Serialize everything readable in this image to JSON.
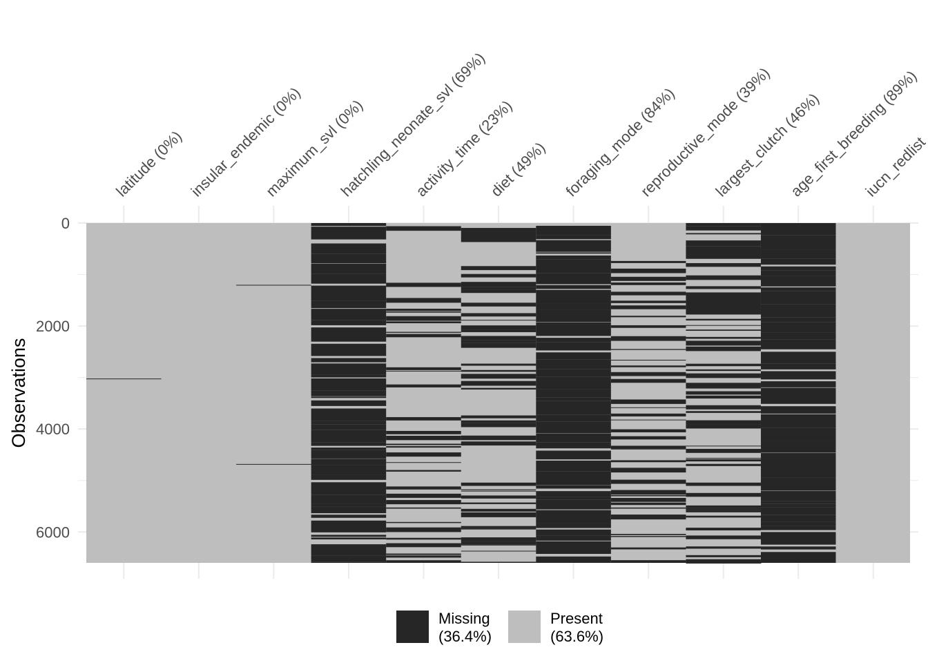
{
  "chart_data": {
    "type": "heatmap",
    "title": "",
    "xlabel": "",
    "ylabel": "Observations",
    "ylim": [
      0,
      6600
    ],
    "y_reversed": true,
    "y_ticks": [
      "0",
      "2000",
      "4000",
      "6000"
    ],
    "y_tick_values": [
      0,
      2000,
      4000,
      6000
    ],
    "n_observations": 6600,
    "grid": true,
    "legend_position": "bottom",
    "colors": {
      "missing": "#262626",
      "present": "#bebebe",
      "grid": "#ebebeb"
    },
    "columns": [
      {
        "name": "latitude",
        "pct_label": "latitude (0%)",
        "missing_pct": 0,
        "missing_rows": [
          3020
        ]
      },
      {
        "name": "insular_endemic",
        "pct_label": "insular_endemic (0%)",
        "missing_pct": 0,
        "missing_rows": []
      },
      {
        "name": "maximum_svl",
        "pct_label": "maximum_svl (0%)",
        "missing_pct": 0,
        "missing_rows": [
          1200,
          4680
        ]
      },
      {
        "name": "hatchling_neonate_svl",
        "pct_label": "hatchling_neonate_svl (69%)",
        "missing_pct": 69
      },
      {
        "name": "activity_time",
        "pct_label": "activity_time (23%)",
        "missing_pct": 23
      },
      {
        "name": "diet",
        "pct_label": "diet (49%)",
        "missing_pct": 49
      },
      {
        "name": "foraging_mode",
        "pct_label": "foraging_mode (84%)",
        "missing_pct": 84
      },
      {
        "name": "reproductive_mode",
        "pct_label": "reproductive_mode (39%)",
        "missing_pct": 39
      },
      {
        "name": "largest_clutch",
        "pct_label": "largest_clutch (46%)",
        "missing_pct": 46
      },
      {
        "name": "age_first_breeding",
        "pct_label": "age_first_breeding (89%)",
        "missing_pct": 89
      },
      {
        "name": "iucn_redlist",
        "pct_label": "iucn_redlist",
        "missing_pct": 0,
        "missing_rows": []
      }
    ],
    "legend": [
      {
        "key": "missing",
        "label_line1": "Missing",
        "label_line2": "(36.4%)"
      },
      {
        "key": "present",
        "label_line1": "Present",
        "label_line2": "(63.6%)"
      }
    ]
  }
}
